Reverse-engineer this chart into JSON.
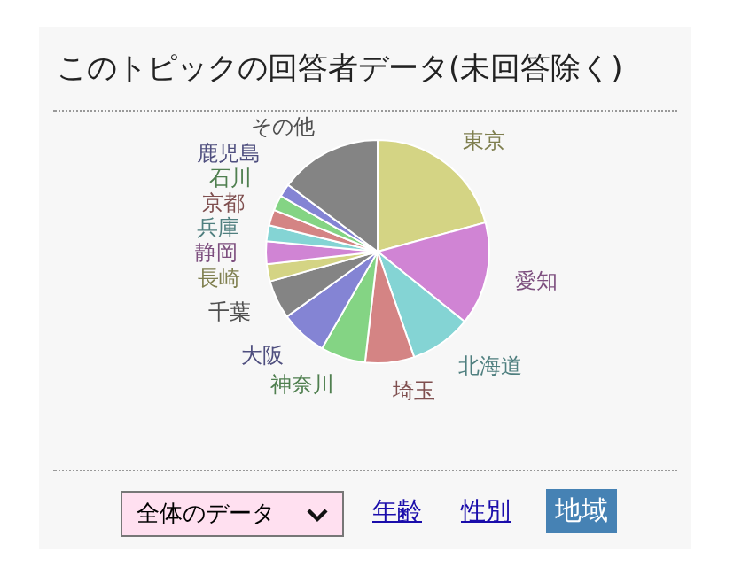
{
  "chart_data": {
    "type": "pie",
    "title": "このトピックの回答者データ(未回答除く)",
    "categories": [
      "東京",
      "愛知",
      "北海道",
      "埼玉",
      "神奈川",
      "大阪",
      "千葉",
      "長崎",
      "静岡",
      "兵庫",
      "京都",
      "石川",
      "鹿児島",
      "その他"
    ],
    "values": [
      20.8,
      15,
      8.9,
      7.1,
      6.5,
      6.8,
      5.6,
      2.5,
      3.3,
      2.3,
      2.3,
      2.2,
      1.9,
      14.8
    ],
    "colors": [
      "#d4d484",
      "#d084d4",
      "#84d4d4",
      "#d48484",
      "#84d484",
      "#8484d4",
      "#848484",
      "#d4d484",
      "#d084d4",
      "#84d4d4",
      "#d48484",
      "#84d484",
      "#8484d4",
      "#848484"
    ],
    "annotations": [
      "全体のデータ",
      "年齢",
      "性別",
      "地域"
    ]
  }
}
